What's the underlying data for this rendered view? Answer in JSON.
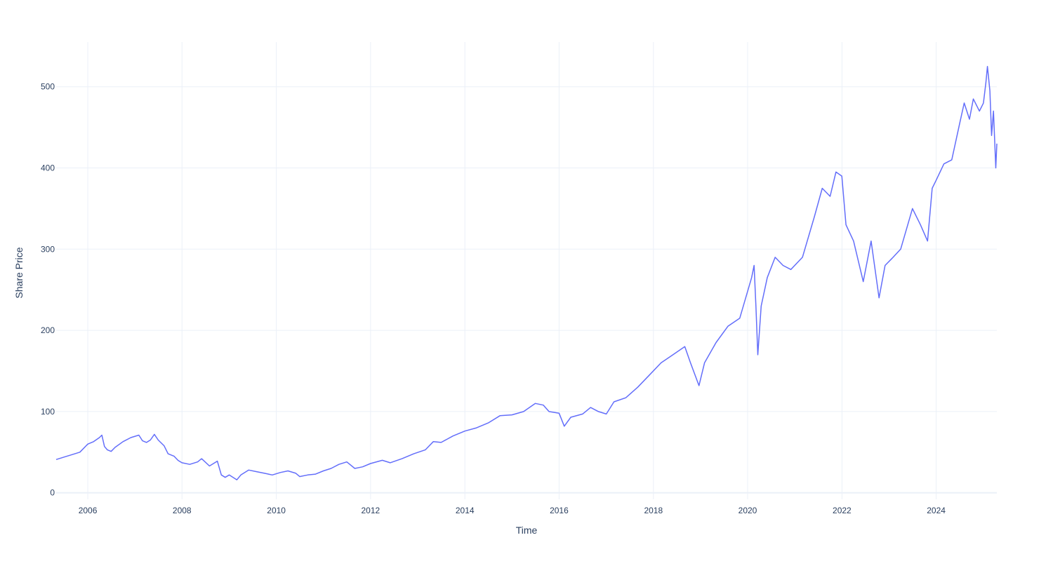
{
  "chart_data": {
    "type": "line",
    "title": "",
    "xlabel": "Time",
    "ylabel": "Share Price",
    "xlim": [
      "2005-05-01",
      "2025-04-15"
    ],
    "ylim": [
      -8,
      555
    ],
    "x_ticks": [
      "2006",
      "2008",
      "2010",
      "2012",
      "2014",
      "2016",
      "2018",
      "2020",
      "2022",
      "2024"
    ],
    "y_ticks": [
      0,
      100,
      200,
      300,
      400,
      500
    ],
    "grid": true,
    "legend": "none",
    "series": [
      {
        "color": "#636efa",
        "points": [
          [
            "2005-05-01",
            41
          ],
          [
            "2005-07-01",
            44
          ],
          [
            "2005-09-01",
            47
          ],
          [
            "2005-11-01",
            50
          ],
          [
            "2006-01-01",
            60
          ],
          [
            "2006-02-15",
            63
          ],
          [
            "2006-04-01",
            68
          ],
          [
            "2006-04-20",
            71
          ],
          [
            "2006-05-10",
            57
          ],
          [
            "2006-06-01",
            53
          ],
          [
            "2006-07-01",
            51
          ],
          [
            "2006-08-01",
            56
          ],
          [
            "2006-10-01",
            63
          ],
          [
            "2006-12-01",
            68
          ],
          [
            "2007-02-01",
            71
          ],
          [
            "2007-03-01",
            64
          ],
          [
            "2007-04-01",
            62
          ],
          [
            "2007-05-01",
            65
          ],
          [
            "2007-06-01",
            72
          ],
          [
            "2007-07-01",
            65
          ],
          [
            "2007-08-15",
            58
          ],
          [
            "2007-09-15",
            48
          ],
          [
            "2007-11-01",
            45
          ],
          [
            "2007-12-01",
            40
          ],
          [
            "2008-01-01",
            37
          ],
          [
            "2008-03-01",
            35
          ],
          [
            "2008-05-01",
            38
          ],
          [
            "2008-06-01",
            42
          ],
          [
            "2008-08-01",
            33
          ],
          [
            "2008-10-01",
            39
          ],
          [
            "2008-11-01",
            22
          ],
          [
            "2008-12-01",
            19
          ],
          [
            "2009-01-01",
            22
          ],
          [
            "2009-03-01",
            16
          ],
          [
            "2009-04-01",
            22
          ],
          [
            "2009-06-01",
            28
          ],
          [
            "2009-08-01",
            26
          ],
          [
            "2009-10-01",
            24
          ],
          [
            "2009-12-01",
            22
          ],
          [
            "2010-02-01",
            25
          ],
          [
            "2010-04-01",
            27
          ],
          [
            "2010-06-01",
            24
          ],
          [
            "2010-07-01",
            20
          ],
          [
            "2010-09-01",
            22
          ],
          [
            "2010-11-01",
            23
          ],
          [
            "2011-01-01",
            27
          ],
          [
            "2011-03-01",
            30
          ],
          [
            "2011-05-01",
            35
          ],
          [
            "2011-07-01",
            38
          ],
          [
            "2011-09-01",
            30
          ],
          [
            "2011-11-01",
            32
          ],
          [
            "2012-01-01",
            36
          ],
          [
            "2012-04-01",
            40
          ],
          [
            "2012-06-01",
            37
          ],
          [
            "2012-09-01",
            42
          ],
          [
            "2012-12-01",
            48
          ],
          [
            "2013-03-01",
            53
          ],
          [
            "2013-05-01",
            63
          ],
          [
            "2013-07-01",
            62
          ],
          [
            "2013-10-01",
            70
          ],
          [
            "2014-01-01",
            76
          ],
          [
            "2014-04-01",
            80
          ],
          [
            "2014-07-01",
            86
          ],
          [
            "2014-10-01",
            95
          ],
          [
            "2015-01-01",
            96
          ],
          [
            "2015-04-01",
            100
          ],
          [
            "2015-07-01",
            110
          ],
          [
            "2015-09-01",
            108
          ],
          [
            "2015-10-15",
            100
          ],
          [
            "2016-01-01",
            98
          ],
          [
            "2016-02-10",
            82
          ],
          [
            "2016-04-01",
            93
          ],
          [
            "2016-07-01",
            97
          ],
          [
            "2016-09-01",
            105
          ],
          [
            "2016-11-01",
            100
          ],
          [
            "2017-01-01",
            97
          ],
          [
            "2017-03-01",
            112
          ],
          [
            "2017-06-01",
            117
          ],
          [
            "2017-09-01",
            130
          ],
          [
            "2017-12-01",
            145
          ],
          [
            "2018-03-01",
            160
          ],
          [
            "2018-06-01",
            170
          ],
          [
            "2018-09-01",
            180
          ],
          [
            "2018-10-15",
            160
          ],
          [
            "2018-12-20",
            132
          ],
          [
            "2019-02-01",
            160
          ],
          [
            "2019-05-01",
            185
          ],
          [
            "2019-08-01",
            205
          ],
          [
            "2019-11-01",
            215
          ],
          [
            "2020-02-01",
            265
          ],
          [
            "2020-02-20",
            280
          ],
          [
            "2020-03-05",
            230
          ],
          [
            "2020-03-20",
            170
          ],
          [
            "2020-04-15",
            230
          ],
          [
            "2020-06-01",
            265
          ],
          [
            "2020-08-01",
            290
          ],
          [
            "2020-10-01",
            280
          ],
          [
            "2020-12-01",
            275
          ],
          [
            "2021-03-01",
            290
          ],
          [
            "2021-06-01",
            340
          ],
          [
            "2021-08-01",
            375
          ],
          [
            "2021-10-01",
            365
          ],
          [
            "2021-11-15",
            395
          ],
          [
            "2021-12-31",
            390
          ],
          [
            "2022-02-01",
            330
          ],
          [
            "2022-04-01",
            310
          ],
          [
            "2022-06-15",
            260
          ],
          [
            "2022-08-15",
            310
          ],
          [
            "2022-10-15",
            240
          ],
          [
            "2022-12-01",
            280
          ],
          [
            "2023-02-01",
            290
          ],
          [
            "2023-04-01",
            300
          ],
          [
            "2023-07-01",
            350
          ],
          [
            "2023-09-01",
            330
          ],
          [
            "2023-10-26",
            310
          ],
          [
            "2023-12-01",
            375
          ],
          [
            "2024-01-01",
            385
          ],
          [
            "2024-03-01",
            405
          ],
          [
            "2024-05-01",
            410
          ],
          [
            "2024-07-01",
            455
          ],
          [
            "2024-08-05",
            480
          ],
          [
            "2024-09-15",
            460
          ],
          [
            "2024-10-15",
            485
          ],
          [
            "2024-12-01",
            470
          ],
          [
            "2025-01-01",
            480
          ],
          [
            "2025-01-20",
            505
          ],
          [
            "2025-02-01",
            525
          ],
          [
            "2025-02-20",
            495
          ],
          [
            "2025-03-05",
            440
          ],
          [
            "2025-03-20",
            470
          ],
          [
            "2025-04-07",
            400
          ],
          [
            "2025-04-15",
            430
          ]
        ]
      }
    ]
  }
}
